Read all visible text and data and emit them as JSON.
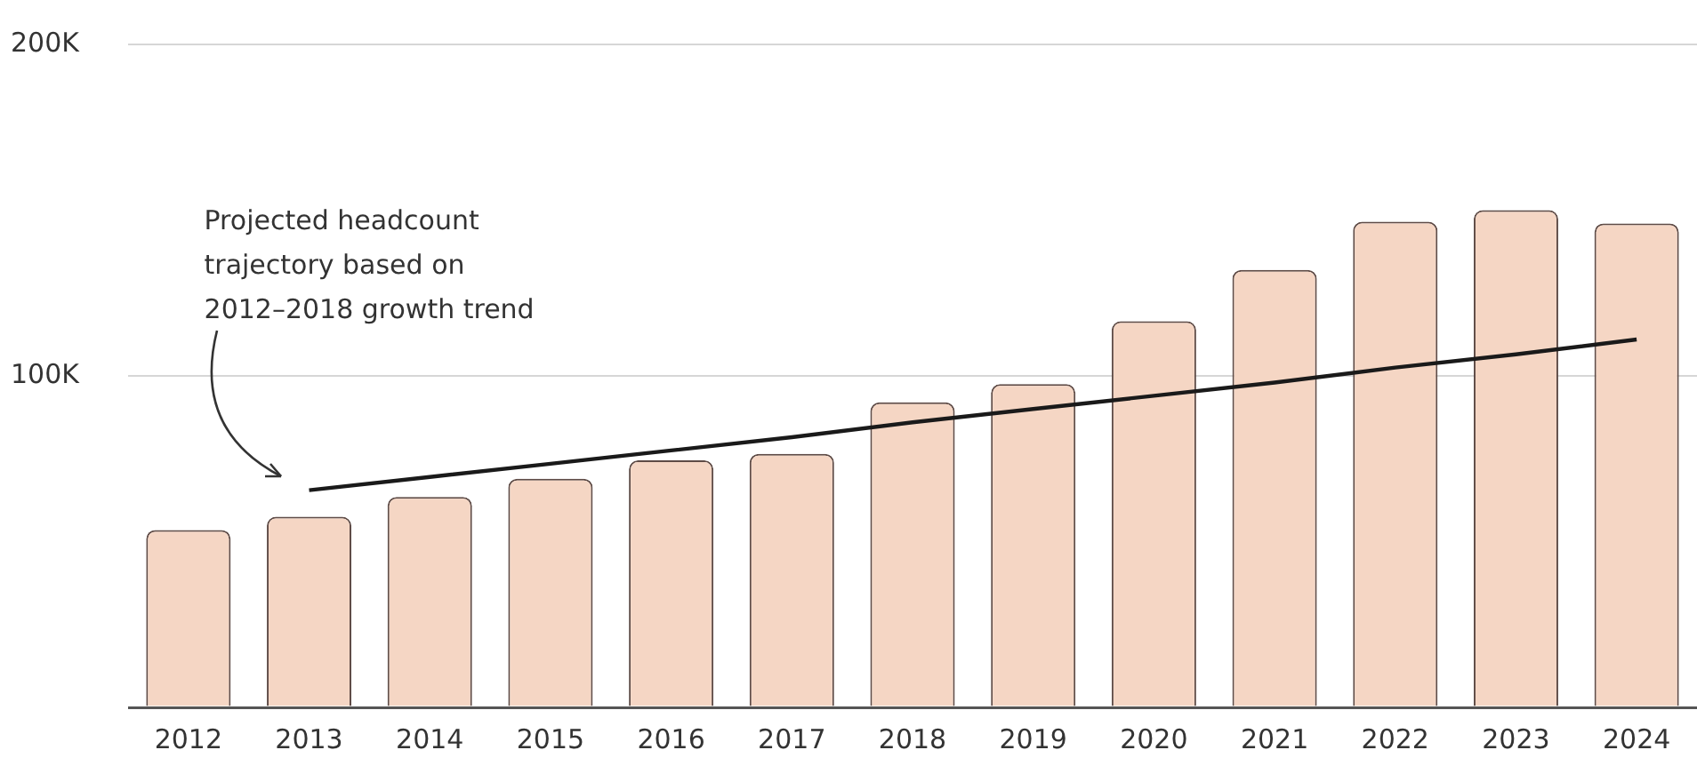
{
  "chart_data": {
    "type": "bar",
    "categories": [
      "2012",
      "2013",
      "2014",
      "2015",
      "2016",
      "2017",
      "2018",
      "2019",
      "2020",
      "2021",
      "2022",
      "2023",
      "2024"
    ],
    "series": [
      {
        "color": "#f5d6c4",
        "values": [
          53500,
          57500,
          63500,
          69000,
          74500,
          76500,
          92000,
          97500,
          116500,
          132000,
          146500,
          150000,
          146000
        ]
      },
      {
        "type": "line",
        "color": "#1a1a1a",
        "values": [
          null,
          65500,
          69500,
          73500,
          77500,
          81500,
          86000,
          90000,
          94000,
          98000,
          102500,
          106500,
          111000
        ]
      }
    ],
    "ylim": [
      0,
      200000
    ],
    "yticks": [
      {
        "value": 0,
        "label": null
      },
      {
        "value": 100000,
        "label": "100K"
      },
      {
        "value": 200000,
        "label": "200K"
      }
    ],
    "grid": "y",
    "annotations": [
      "Projected headcount\ntrajectory based on\n2012–2018 growth trend"
    ]
  }
}
